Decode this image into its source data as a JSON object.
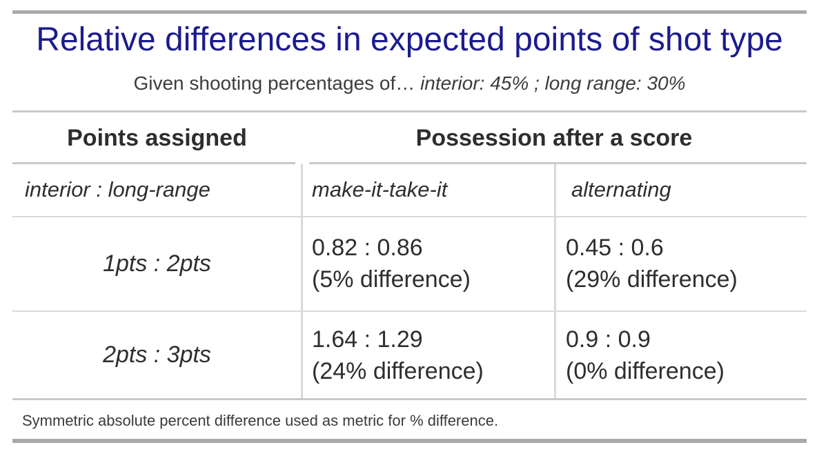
{
  "title": "Relative differences in expected points of shot type",
  "subtitle": {
    "prefix": "Given shooting percentages of… ",
    "assumptions": "interior: 45% ; long range: 30%"
  },
  "table": {
    "group_headers": [
      "Points assigned",
      "Possession after a score"
    ],
    "column_headers": [
      "interior : long-range",
      "make-it-take-it",
      "alternating"
    ],
    "rows": [
      {
        "points": "1pts : 2pts",
        "make_it_take_it": {
          "ratio": "0.82 : 0.86",
          "difference": "(5% difference)"
        },
        "alternating": {
          "ratio": "0.45 : 0.6",
          "difference": "(29% difference)"
        }
      },
      {
        "points": "2pts : 3pts",
        "make_it_take_it": {
          "ratio": "1.64 : 1.29",
          "difference": "(24% difference)"
        },
        "alternating": {
          "ratio": "0.9 : 0.9",
          "difference": "(0% difference)"
        }
      }
    ]
  },
  "footnote": "Symmetric absolute percent difference used as metric for % difference.",
  "colors": {
    "title_navy": "#1b1b8e",
    "text_dark": "#2e2e2e",
    "text_gray": "#3d3d3d",
    "rule_light": "#d9d9d9",
    "rule_medium": "#c9c9c9",
    "bar_gray": "#a9a9a9",
    "background": "#ffffff"
  },
  "chart_data": {
    "type": "table",
    "title": "Relative differences in expected points of shot type",
    "subtitle": "Given shooting percentages of… interior: 45% ; long range: 30%",
    "assumptions": {
      "interior_shooting_pct": 45,
      "long_range_shooting_pct": 30
    },
    "row_dimension": "Points assigned (interior : long-range)",
    "column_dimension": "Possession after a score",
    "columns": [
      "make-it-take-it",
      "alternating"
    ],
    "rows": [
      {
        "points_assigned": "1pts : 2pts",
        "make_it_take_it": {
          "interior_expected_points": 0.82,
          "long_range_expected_points": 0.86,
          "percent_difference": 5
        },
        "alternating": {
          "interior_expected_points": 0.45,
          "long_range_expected_points": 0.6,
          "percent_difference": 29
        }
      },
      {
        "points_assigned": "2pts : 3pts",
        "make_it_take_it": {
          "interior_expected_points": 1.64,
          "long_range_expected_points": 1.29,
          "percent_difference": 24
        },
        "alternating": {
          "interior_expected_points": 0.9,
          "long_range_expected_points": 0.9,
          "percent_difference": 0
        }
      }
    ],
    "footnote": "Symmetric absolute percent difference used as metric for % difference."
  }
}
